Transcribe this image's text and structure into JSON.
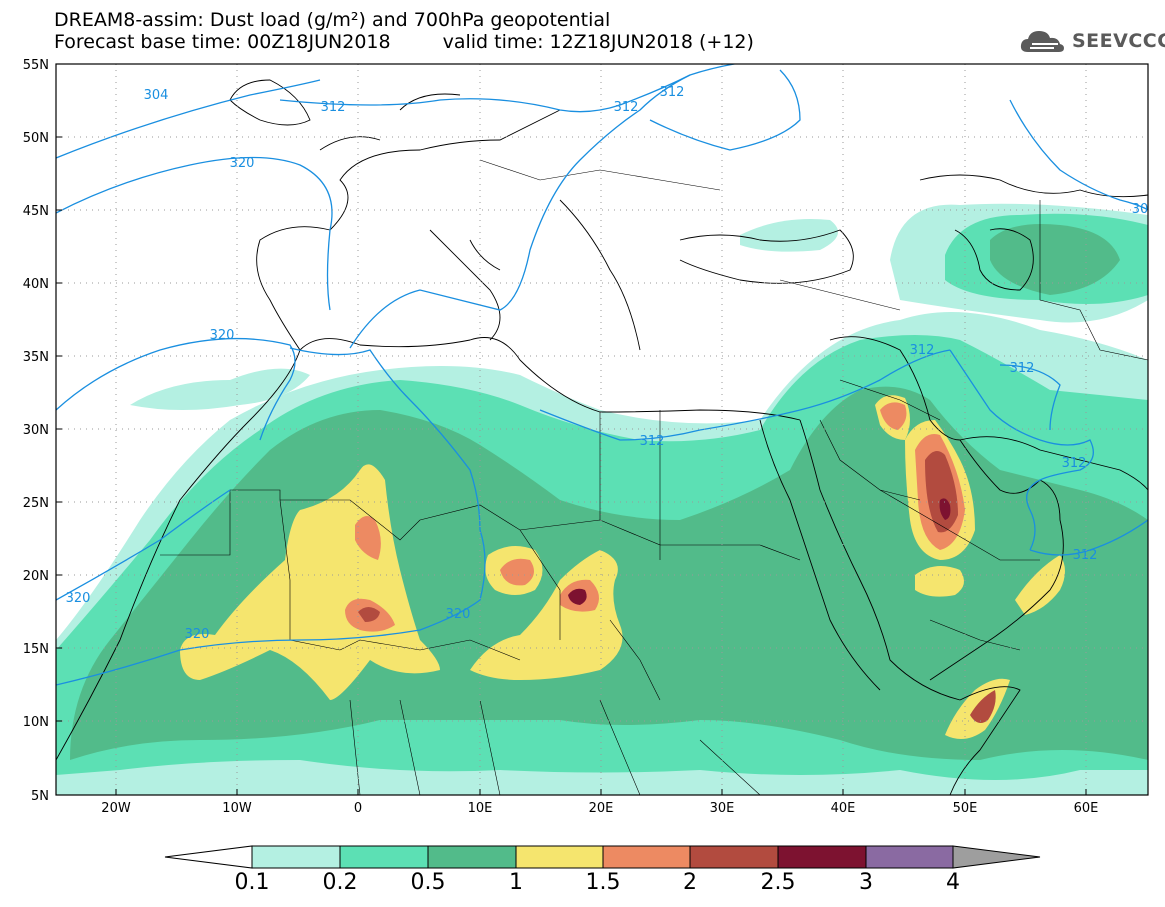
{
  "header": {
    "title_line1": "DREAM8-assim: Dust load (g/m²) and 700hPa geopotential",
    "forecast_base": "Forecast base time: 00Z18JUN2018",
    "valid_time": "valid time: 12Z18JUN2018 (+12)"
  },
  "logo": {
    "text": "SEEVCCC",
    "icon": "cloud-icon"
  },
  "map": {
    "lat_labels": [
      "55N",
      "50N",
      "45N",
      "40N",
      "35N",
      "30N",
      "25N",
      "20N",
      "15N",
      "10N",
      "5N"
    ],
    "lon_labels": [
      "20W",
      "10W",
      "0",
      "10E",
      "20E",
      "30E",
      "40E",
      "50E",
      "60E"
    ],
    "contour_labels": [
      "304",
      "312",
      "312",
      "312",
      "320",
      "320",
      "320",
      "320",
      "320",
      "312",
      "312",
      "312",
      "312",
      "312",
      "30"
    ],
    "colors": {
      "land_bg": "#ffffff",
      "contour": "#1a8fe0",
      "coast": "#000000"
    }
  },
  "colorbar": {
    "levels": [
      "0.1",
      "0.2",
      "0.5",
      "1",
      "1.5",
      "2",
      "2.5",
      "3",
      "4"
    ],
    "colors": [
      "#ffffff",
      "#b4f0e2",
      "#5ce0b4",
      "#52bb8a",
      "#f5e56e",
      "#ed8a62",
      "#b24b3f",
      "#7d1230",
      "#8a6aa2",
      "#9e9e9e"
    ]
  }
}
